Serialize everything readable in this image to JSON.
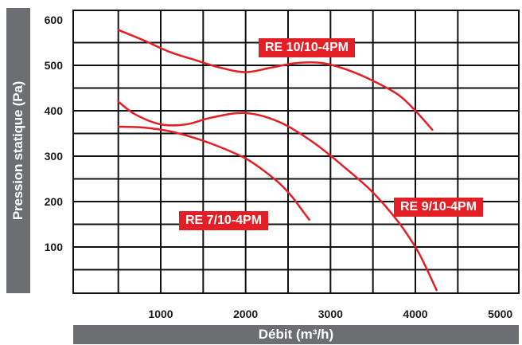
{
  "chart_data": {
    "type": "line",
    "xlabel": "Débit (m³/h)",
    "ylabel": "Pression statique (Pa)",
    "xlim": [
      0,
      5000
    ],
    "ylim": [
      0,
      600
    ],
    "xticks": [
      1000,
      2000,
      3000,
      4000,
      5000
    ],
    "yticks": [
      100,
      200,
      300,
      400,
      500,
      600
    ],
    "grid": true,
    "series": [
      {
        "name": "RE 10/10-4PM",
        "color": "#e31e24",
        "x": [
          500,
          800,
          1100,
          1400,
          1700,
          2000,
          2300,
          2600,
          2900,
          3200,
          3500,
          3800,
          4000,
          4200
        ],
        "y": [
          578,
          555,
          530,
          512,
          495,
          485,
          495,
          505,
          505,
          490,
          466,
          435,
          400,
          358
        ]
      },
      {
        "name": "RE 9/10-4PM",
        "color": "#e31e24",
        "x": [
          500,
          700,
          1000,
          1300,
          1600,
          2000,
          2400,
          2800,
          3200,
          3500,
          3800,
          4000,
          4100,
          4250
        ],
        "y": [
          420,
          392,
          370,
          370,
          385,
          395,
          375,
          330,
          270,
          220,
          155,
          100,
          65,
          5
        ]
      },
      {
        "name": "RE 7/10-4PM",
        "color": "#e31e24",
        "x": [
          500,
          800,
          1100,
          1400,
          1700,
          2000,
          2200,
          2400,
          2550,
          2650,
          2750
        ],
        "y": [
          365,
          363,
          355,
          340,
          320,
          295,
          270,
          240,
          210,
          185,
          160
        ]
      }
    ]
  }
}
